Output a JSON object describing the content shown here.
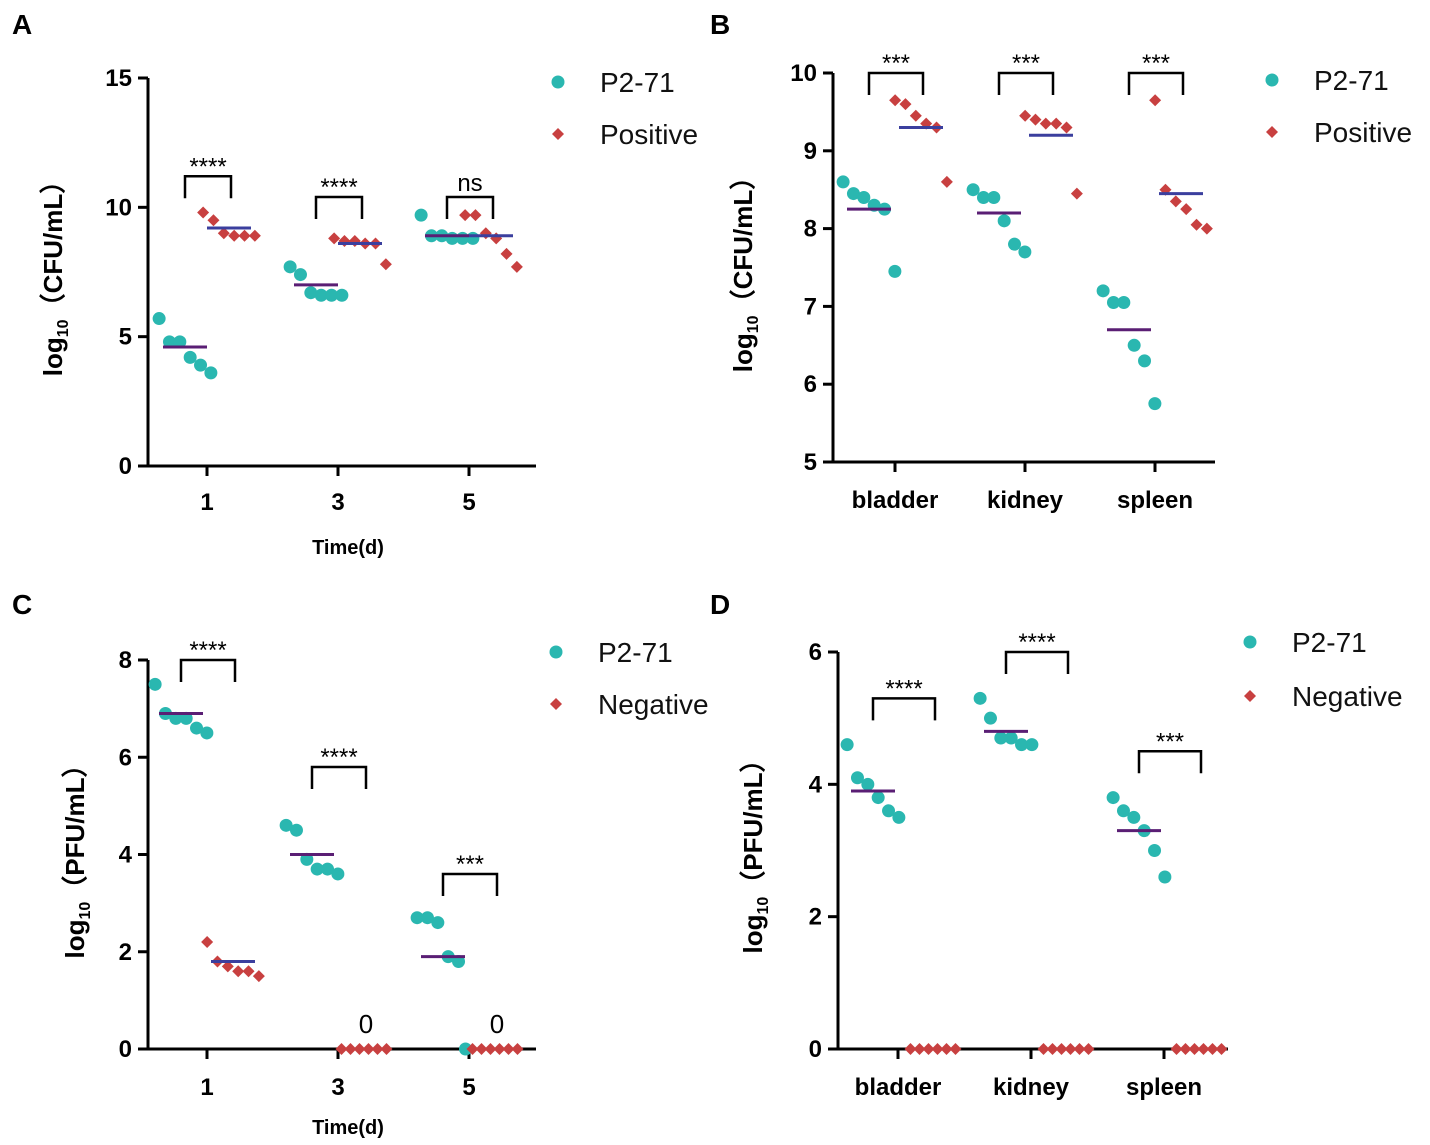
{
  "colors": {
    "group1": "#2ab7b0",
    "group2": "#c84040",
    "mean_line": "#5a1e74",
    "mean_line_alt": "#3b3f9e",
    "axis": "#000000"
  },
  "chart_data": [
    {
      "panel": "A",
      "type": "scatter",
      "ylabel_prefix": "log",
      "ylabel_sub": "10",
      "ylabel_unit": "（CFU/mL）",
      "xlabel": "Time(d)",
      "categories": [
        "1",
        "3",
        "5"
      ],
      "ylim": [
        0,
        15
      ],
      "yticks": [
        "0",
        "5",
        "10",
        "15"
      ],
      "legend": [
        "P2-71",
        "Positive"
      ],
      "series": [
        {
          "name": "P2-71",
          "marker": "circle",
          "points": [
            [
              5.7,
              4.8,
              4.8,
              4.2,
              3.9,
              3.6
            ],
            [
              7.7,
              7.4,
              6.7,
              6.6,
              6.6,
              6.6
            ],
            [
              9.7,
              8.9,
              8.9,
              8.8,
              8.8,
              8.8
            ]
          ],
          "means": [
            4.6,
            7.0,
            8.9
          ]
        },
        {
          "name": "Positive",
          "marker": "diamond",
          "points": [
            [
              9.8,
              9.5,
              9.0,
              8.9,
              8.9,
              8.9
            ],
            [
              8.8,
              8.7,
              8.7,
              8.6,
              8.6,
              7.8
            ],
            [
              9.7,
              9.7,
              9.0,
              8.8,
              8.2,
              7.7
            ]
          ],
          "means": [
            9.2,
            8.6,
            8.9
          ]
        }
      ],
      "significance": [
        "****",
        "****",
        "ns"
      ],
      "sig_y": [
        11.2,
        10.4,
        10.4
      ]
    },
    {
      "panel": "B",
      "type": "scatter",
      "ylabel_prefix": "log",
      "ylabel_sub": "10",
      "ylabel_unit": "（CFU/mL）",
      "xlabel": "",
      "categories": [
        "bladder",
        "kidney",
        "spleen"
      ],
      "ylim": [
        5,
        10
      ],
      "yticks": [
        "5",
        "6",
        "7",
        "8",
        "9",
        "10"
      ],
      "legend": [
        "P2-71",
        "Positive"
      ],
      "series": [
        {
          "name": "P2-71",
          "marker": "circle",
          "points": [
            [
              8.6,
              8.45,
              8.4,
              8.3,
              8.25,
              7.45
            ],
            [
              8.5,
              8.4,
              8.4,
              8.1,
              7.8,
              7.7
            ],
            [
              7.2,
              7.05,
              7.05,
              6.5,
              6.3,
              5.75
            ]
          ],
          "means": [
            8.25,
            8.2,
            6.7
          ]
        },
        {
          "name": "Positive",
          "marker": "diamond",
          "points": [
            [
              9.65,
              9.6,
              9.45,
              9.35,
              9.3,
              8.6
            ],
            [
              9.45,
              9.4,
              9.35,
              9.35,
              9.3,
              8.45
            ],
            [
              9.65,
              8.5,
              8.35,
              8.25,
              8.05,
              8.0
            ]
          ],
          "means": [
            9.3,
            9.2,
            8.45
          ]
        }
      ],
      "significance": [
        "***",
        "***",
        "***"
      ],
      "sig_y": [
        10.0,
        10.0,
        10.0
      ]
    },
    {
      "panel": "C",
      "type": "scatter",
      "ylabel_prefix": "log",
      "ylabel_sub": "10",
      "ylabel_unit": "（PFU/mL）",
      "xlabel": "Time(d)",
      "categories": [
        "1",
        "3",
        "5"
      ],
      "ylim": [
        0,
        8
      ],
      "yticks": [
        "0",
        "2",
        "4",
        "6",
        "8"
      ],
      "legend": [
        "P2-71",
        "Negative"
      ],
      "series": [
        {
          "name": "P2-71",
          "marker": "circle",
          "points": [
            [
              7.5,
              6.9,
              6.8,
              6.8,
              6.6,
              6.5
            ],
            [
              4.6,
              4.5,
              3.9,
              3.7,
              3.7,
              3.6
            ],
            [
              2.7,
              2.7,
              2.6,
              1.9,
              1.8,
              0.0
            ]
          ],
          "means": [
            6.9,
            4.0,
            1.9
          ]
        },
        {
          "name": "Negative",
          "marker": "diamond",
          "points": [
            [
              2.2,
              1.8,
              1.7,
              1.6,
              1.6,
              1.5
            ],
            [
              0,
              0,
              0,
              0,
              0,
              0
            ],
            [
              0,
              0,
              0,
              0,
              0,
              0
            ]
          ],
          "means": [
            1.8,
            0,
            0
          ]
        }
      ],
      "significance": [
        "****",
        "****",
        "***"
      ],
      "sig_y": [
        8.0,
        5.8,
        3.6
      ],
      "zero_labels": [
        "",
        "0",
        "0"
      ]
    },
    {
      "panel": "D",
      "type": "scatter",
      "ylabel_prefix": "log",
      "ylabel_sub": "10",
      "ylabel_unit": "（PFU/mL）",
      "xlabel": "",
      "categories": [
        "bladder",
        "kidney",
        "spleen"
      ],
      "ylim": [
        0,
        6
      ],
      "yticks": [
        "0",
        "2",
        "4",
        "6"
      ],
      "legend": [
        "P2-71",
        "Negative"
      ],
      "series": [
        {
          "name": "P2-71",
          "marker": "circle",
          "points": [
            [
              4.6,
              4.1,
              4.0,
              3.8,
              3.6,
              3.5
            ],
            [
              5.3,
              5.0,
              4.7,
              4.7,
              4.6,
              4.6
            ],
            [
              3.8,
              3.6,
              3.5,
              3.3,
              3.0,
              2.6
            ]
          ],
          "means": [
            3.9,
            4.8,
            3.3
          ]
        },
        {
          "name": "Negative",
          "marker": "diamond",
          "points": [
            [
              0,
              0,
              0,
              0,
              0,
              0
            ],
            [
              0,
              0,
              0,
              0,
              0,
              0
            ],
            [
              0,
              0,
              0,
              0,
              0,
              0
            ]
          ],
          "means": [
            0,
            0,
            0
          ]
        }
      ],
      "significance": [
        "****",
        "****",
        "***"
      ],
      "sig_y": [
        5.3,
        6.0,
        4.5
      ]
    }
  ]
}
